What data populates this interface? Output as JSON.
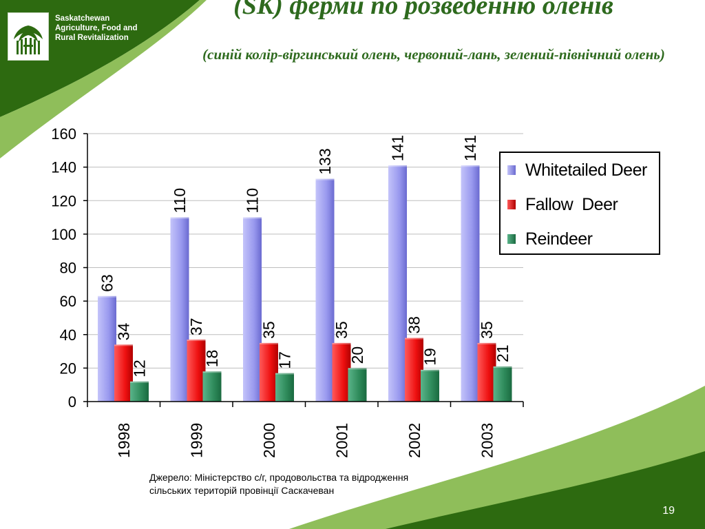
{
  "header": {
    "org_name": "Saskatchewan Agriculture, Food and Rural Revitalization",
    "title": "(SK) ферми по розведенню оленів",
    "subtitle": "(синій колір-віргинський олень, червоний-лань, зелений-північний олень)"
  },
  "logo": {
    "icon": "wheat-sheaf-icon"
  },
  "chart_data": {
    "type": "bar",
    "categories": [
      "1998",
      "1999",
      "2000",
      "2001",
      "2002",
      "2003"
    ],
    "series": [
      {
        "name": "Whitetailed Deer",
        "values": [
          63,
          110,
          110,
          133,
          141,
          141
        ],
        "color": "#9a9af0"
      },
      {
        "name": "Fallow  Deer",
        "values": [
          34,
          37,
          35,
          35,
          38,
          35
        ],
        "color": "#f01010"
      },
      {
        "name": "Reindeer",
        "values": [
          12,
          18,
          17,
          20,
          19,
          21
        ],
        "color": "#2e8a5a"
      }
    ],
    "yticks": [
      0,
      20,
      40,
      60,
      80,
      100,
      120,
      140,
      160
    ],
    "ylim": [
      0,
      160
    ],
    "grid": true,
    "legend_position": "right",
    "data_labels": true
  },
  "source_text": {
    "line1": "Джерело: Міністерство с/г, продовольства та відродження",
    "line2": "сільських територій провінції Саскачеван"
  },
  "page_number": "19",
  "colors": {
    "dark_green": "#2d6a10",
    "light_green": "#8fbe5a",
    "title_green": "#2e6a1e"
  }
}
